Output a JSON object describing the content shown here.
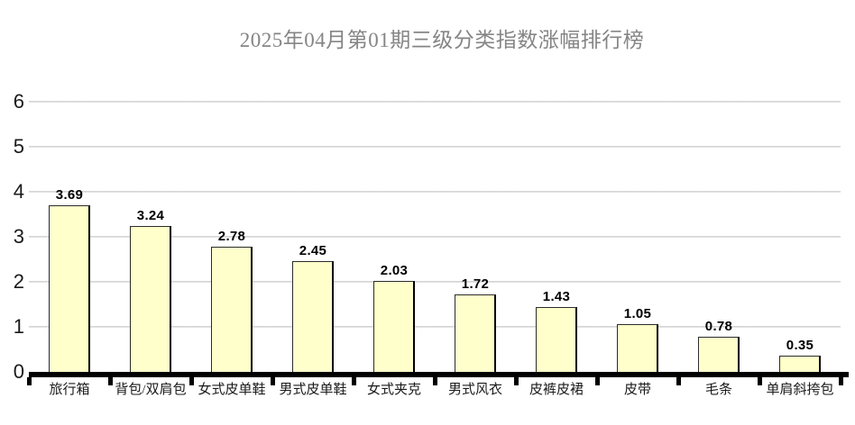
{
  "chart_data": {
    "type": "bar",
    "title": "2025年04月第01期三级分类指数涨幅排行榜",
    "categories": [
      "旅行箱",
      "背包/双肩包",
      "女式皮单鞋",
      "男式皮单鞋",
      "女式夹克",
      "男式风衣",
      "皮裤皮裙",
      "皮带",
      "毛条",
      "单肩斜挎包"
    ],
    "values": [
      3.69,
      3.24,
      2.78,
      2.45,
      2.03,
      1.72,
      1.43,
      1.05,
      0.78,
      0.35
    ],
    "value_labels": [
      "3.69",
      "3.24",
      "2.78",
      "2.45",
      "2.03",
      "1.72",
      "1.43",
      "1.05",
      "0.78",
      "0.35"
    ],
    "xlabel": "",
    "ylabel": "",
    "ylim": [
      0,
      6
    ],
    "ytick_labels": [
      "0",
      "1",
      "2",
      "3",
      "4",
      "5",
      "6"
    ],
    "grid": "horizontal",
    "legend": "none",
    "colors": {
      "bar_fill": "#FFFFCC",
      "bar_border": "#000000",
      "grid_line": "#CFCFCF",
      "axis_line": "#000000",
      "tick_mark": "#000000",
      "title_text": "#858585",
      "category_text": "#1A1A1A",
      "value_text": "#000000",
      "ytick_text": "#1A1A1A"
    }
  }
}
